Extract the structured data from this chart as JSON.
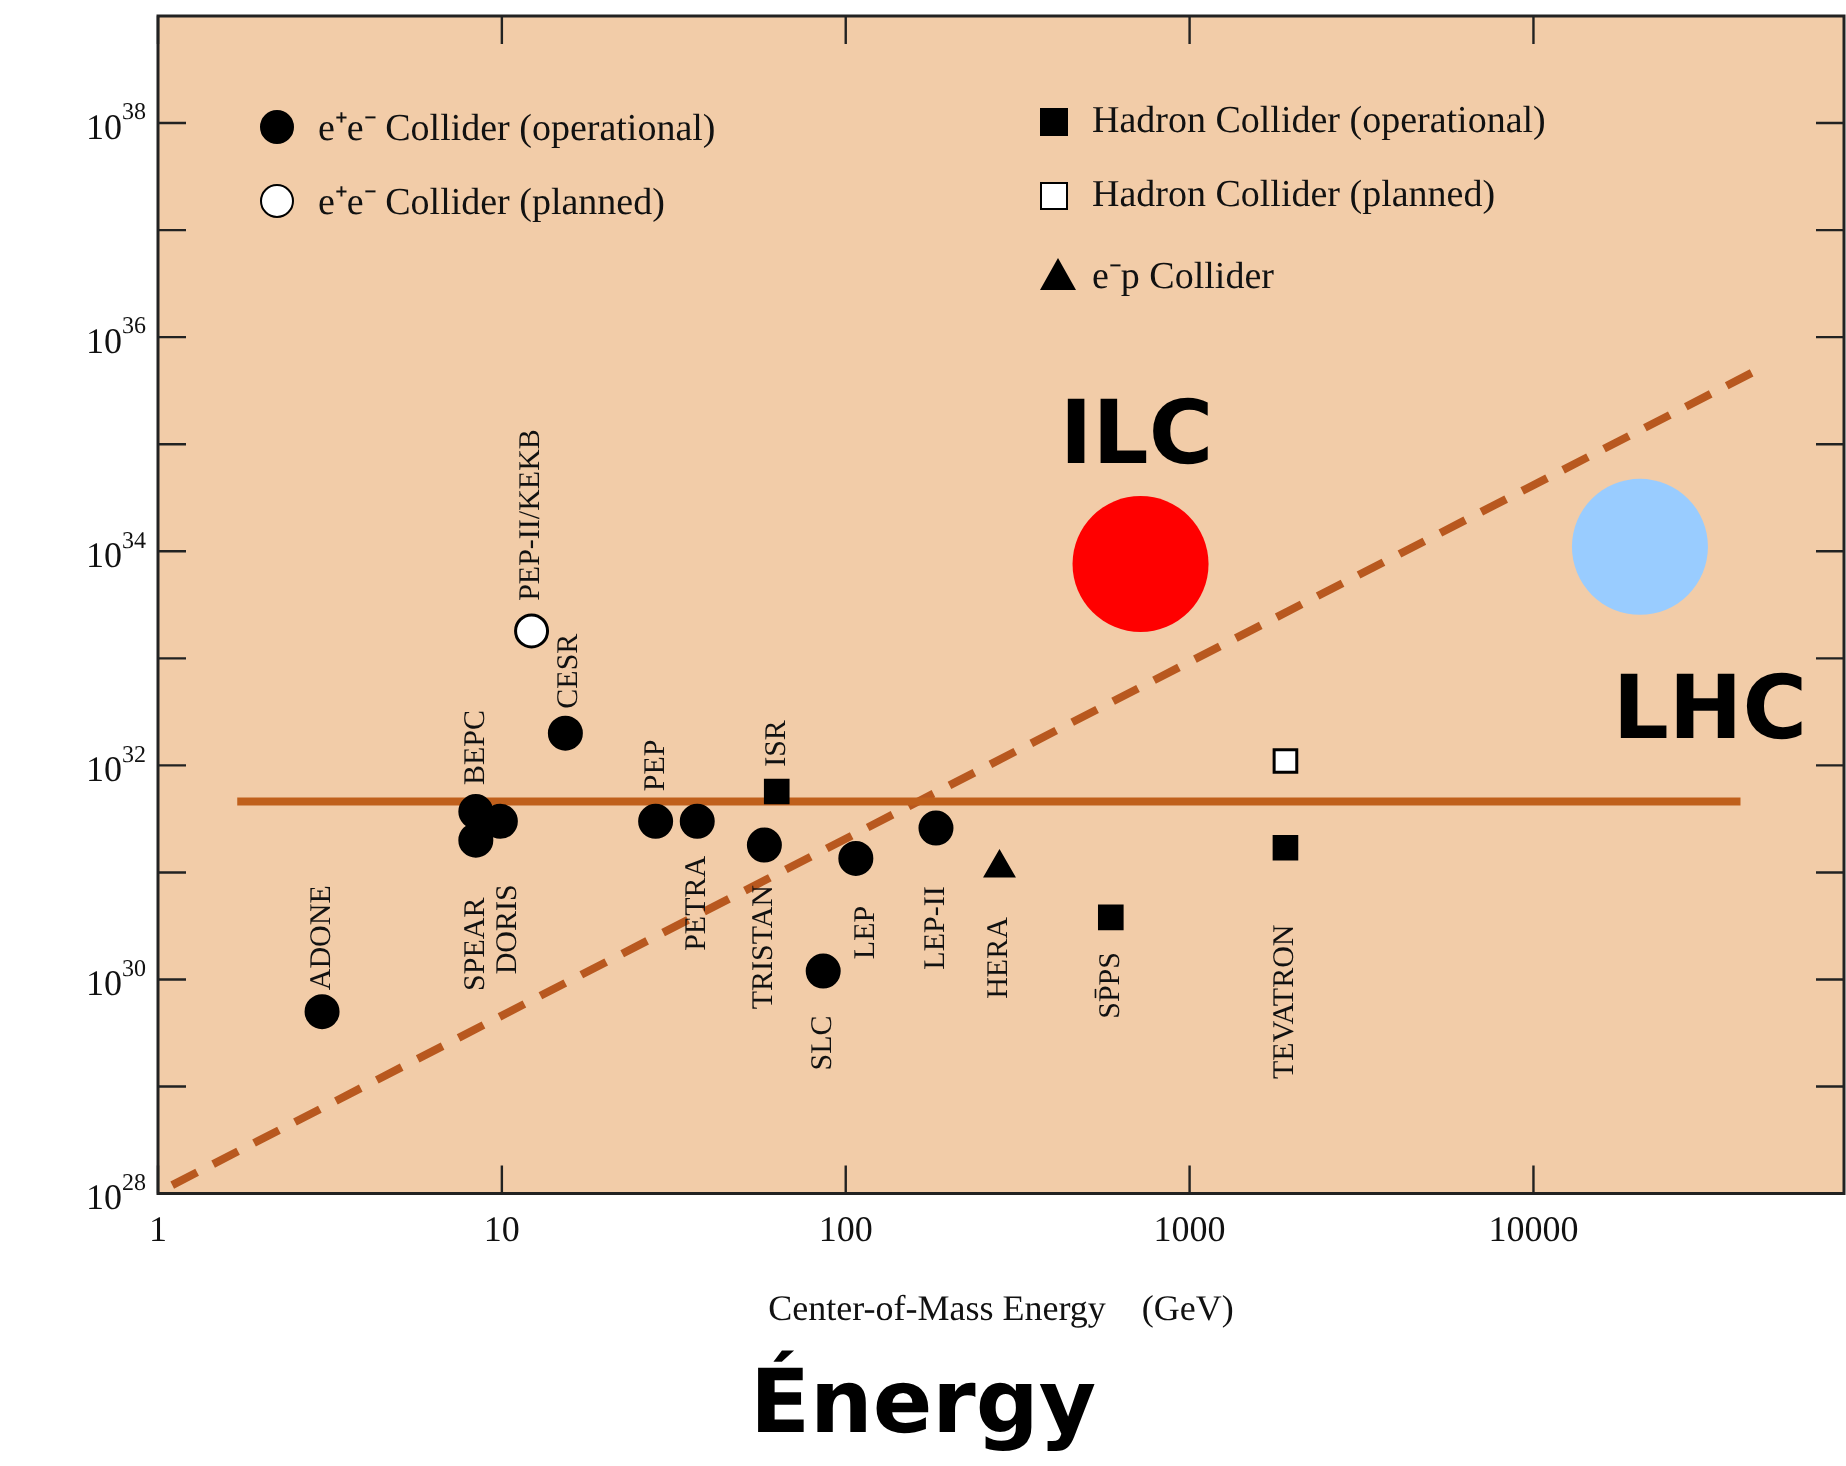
{
  "chart_data": {
    "type": "scatter",
    "xlabel": "Center-of-Mass Energy    (GeV)",
    "log": "xy",
    "grid": false,
    "legend": "top",
    "xlim": [
      1,
      80000
    ],
    "xticks": [
      1,
      10,
      100,
      1000,
      10000
    ],
    "ylim": [
      1e+28,
      1e+39
    ],
    "yticks": [
      {
        "value": 1e+28,
        "label": "10$^{28}$"
      },
      {
        "value": 1e+29,
        "label": null
      },
      {
        "value": 1e+30,
        "label": "10$^{30}$"
      },
      {
        "value": 1e+31,
        "label": null
      },
      {
        "value": 1e+32,
        "label": "10$^{32}$"
      },
      {
        "value": 1e+33,
        "label": null
      },
      {
        "value": 1e+34,
        "label": "10$^{34}$"
      },
      {
        "value": 1e+35,
        "label": null
      },
      {
        "value": 1e+36,
        "label": "10$^{36}$"
      },
      {
        "value": 1e+37,
        "label": null
      },
      {
        "value": 1e+38,
        "label": "10$^{38}$"
      }
    ],
    "series": [
      {
        "name": "e⁺e⁻ Collider (operational)",
        "color": "#000000",
        "marker": "circle",
        "x": [
          3.0,
          8.4,
          8.4,
          9.9,
          15.3,
          28,
          37,
          58,
          86,
          107,
          183
        ],
        "values": [
          5e+29,
          2e+31,
          3.7e+31,
          3e+31,
          2e+32,
          3e+31,
          3e+31,
          1.8e+31,
          1.2e+30,
          1.35e+31,
          2.6e+31
        ]
      },
      {
        "name": "e⁺e⁻ Collider (planned)",
        "color": "#ffffff",
        "marker": "circle",
        "x": [
          12.2
        ],
        "values": [
          1.8e+33
        ]
      },
      {
        "name": "Hadron Collider (operational)",
        "color": "#000000",
        "marker": "square",
        "x": [
          63,
          590,
          1900
        ],
        "values": [
          5.7e+31,
          3.8e+30,
          1.7e+31
        ]
      },
      {
        "name": "Hadron Collider (planned)",
        "color": "#ffffff",
        "marker": "square",
        "x": [
          1900
        ],
        "values": [
          1.1e+32
        ]
      },
      {
        "name": "e⁻p Collider",
        "color": "#000000",
        "marker": "triangle",
        "x": [
          280
        ],
        "values": [
          1.1e+31
        ]
      },
      {
        "type": "bubble",
        "color": "#ff0000",
        "x": [
          720
        ],
        "values": [
          7.6e+33
        ],
        "sizes": [
          1
        ]
      },
      {
        "type": "bubble",
        "color": "#99ccff",
        "x": [
          20400
        ],
        "values": [
          1.1e+34
        ],
        "sizes": [
          1
        ]
      },
      {
        "type": "line",
        "color": "#c0601c",
        "line_style": "solid",
        "x": [
          1.7,
          40000
        ],
        "values": [
          4.6e+31,
          4.6e+31
        ]
      },
      {
        "type": "line",
        "color": "#b8581f",
        "line_style": "dashed",
        "x": [
          1.1,
          44000
        ],
        "values": [
          1.2e+28,
          4.8e+35
        ]
      }
    ],
    "annotations": [
      {
        "text": "ADONE",
        "x": 3.0,
        "y": 5e+29
      },
      {
        "text": "BEPC",
        "x": 8.4,
        "y": 3.7e+31
      },
      {
        "text": "SPEAR",
        "x": 8.4,
        "y": 2e+31
      },
      {
        "text": "DORIS",
        "x": 9.9,
        "y": 3e+31
      },
      {
        "text": "PEP-II/KEKB",
        "x": 12.2,
        "y": 1.8e+33
      },
      {
        "text": "CESR",
        "x": 15.3,
        "y": 2e+32
      },
      {
        "text": "PEP",
        "x": 28,
        "y": 3e+31
      },
      {
        "text": "PETRA",
        "x": 37,
        "y": 3e+31
      },
      {
        "text": "ISR",
        "x": 63,
        "y": 5.7e+31
      },
      {
        "text": "TRISTAN",
        "x": 58,
        "y": 1.8e+31
      },
      {
        "text": "SLC",
        "x": 86,
        "y": 1.2e+30
      },
      {
        "text": "LEP",
        "x": 107,
        "y": 1.35e+31
      },
      {
        "text": "LEP-II",
        "x": 183,
        "y": 2.6e+31
      },
      {
        "text": "HERA",
        "x": 280,
        "y": 1.1e+31
      },
      {
        "text": "SP̄PS",
        "x": 590,
        "y": 3.8e+30
      },
      {
        "text": "TEVATRON",
        "x": 1900,
        "y": 1.7e+31
      },
      {
        "text": "ILC",
        "x": 720,
        "y": 7.6e+33
      },
      {
        "text": "LHC",
        "x": 20400,
        "y": 1.1e+34
      },
      "Énergy"
    ]
  }
}
